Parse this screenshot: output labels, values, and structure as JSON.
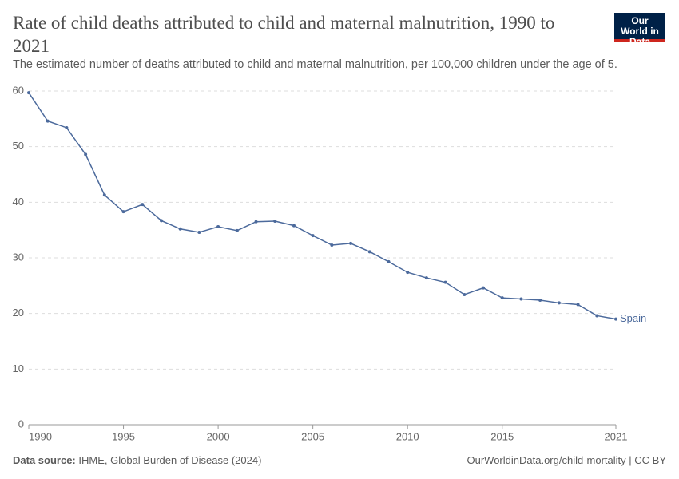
{
  "chart_data": {
    "type": "line",
    "title": "Rate of child deaths attributed to child and maternal malnutrition, 1990 to 2021",
    "subtitle": "The estimated number of deaths attributed to child and maternal malnutrition, per 100,000 children under the age of 5.",
    "logo": "Our World in Data",
    "source_label": "Data source:",
    "source": "IHME, Global Burden of Disease (2024)",
    "credit": "OurWorldinData.org/child-mortality | CC BY",
    "x": [
      1990,
      1991,
      1992,
      1993,
      1994,
      1995,
      1996,
      1997,
      1998,
      1999,
      2000,
      2001,
      2002,
      2003,
      2004,
      2005,
      2006,
      2007,
      2008,
      2009,
      2010,
      2011,
      2012,
      2013,
      2014,
      2015,
      2016,
      2017,
      2018,
      2019,
      2020,
      2021
    ],
    "series": [
      {
        "name": "Spain",
        "color": "#4c6a9c",
        "values": [
          59.7,
          54.6,
          53.4,
          48.6,
          41.3,
          38.3,
          39.6,
          36.7,
          35.2,
          34.6,
          35.6,
          34.9,
          36.5,
          36.6,
          35.8,
          34.0,
          32.3,
          32.6,
          31.1,
          29.3,
          27.4,
          26.4,
          25.6,
          23.4,
          24.6,
          22.8,
          22.6,
          22.4,
          21.9,
          21.6,
          19.6,
          19.0
        ]
      }
    ],
    "xlim": [
      1990,
      2021
    ],
    "xticks": [
      1990,
      1995,
      2000,
      2005,
      2010,
      2015,
      2021
    ],
    "ylim": [
      0,
      60
    ],
    "yticks": [
      0,
      10,
      20,
      30,
      40,
      50,
      60
    ],
    "grid": true
  }
}
